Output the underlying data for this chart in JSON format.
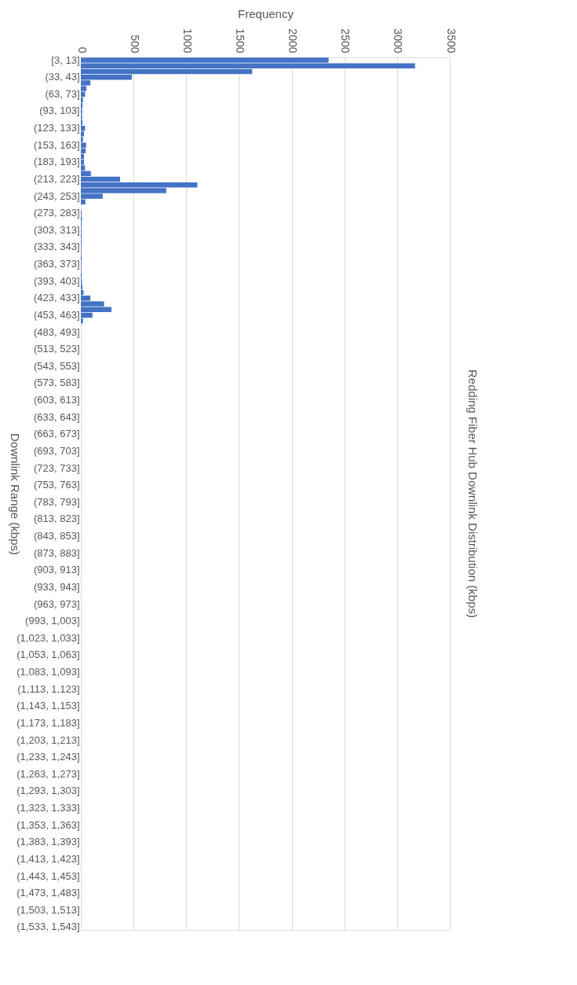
{
  "chart_data": {
    "type": "bar",
    "orientation": "horizontal",
    "title": "Redding Fiber Hub Downlink Distribution (kbps)",
    "xlabel": "Frequency",
    "ylabel": "Downlink Range (kbps)",
    "categories": [
      "[3, 13]",
      null,
      null,
      "(33, 43]",
      null,
      null,
      "(63, 73]",
      null,
      null,
      "(93, 103]",
      null,
      null,
      "(123, 133]",
      null,
      null,
      "(153, 163]",
      null,
      null,
      "(183, 193]",
      null,
      null,
      "(213, 223]",
      null,
      null,
      "(243, 253]",
      null,
      null,
      "(273, 283]",
      null,
      null,
      "(303, 313]",
      null,
      null,
      "(333, 343]",
      null,
      null,
      "(363, 373]",
      null,
      null,
      "(393, 403]",
      null,
      null,
      "(423, 433]",
      null,
      null,
      "(453, 463]",
      null,
      null,
      "(483, 493]",
      null,
      null,
      "(513, 523]",
      null,
      null,
      "(543, 553]",
      null,
      null,
      "(573, 583]",
      null,
      null,
      "(603, 613]",
      null,
      null,
      "(633, 643]",
      null,
      null,
      "(663, 673]",
      null,
      null,
      "(693, 703]",
      null,
      null,
      "(723, 733]",
      null,
      null,
      "(753, 763]",
      null,
      null,
      "(783, 793]",
      null,
      null,
      "(813, 823]",
      null,
      null,
      "(843, 853]",
      null,
      null,
      "(873, 883]",
      null,
      null,
      "(903, 913]",
      null,
      null,
      "(933, 943]",
      null,
      null,
      "(963, 973]",
      null,
      null,
      "(993, 1,003]",
      null,
      null,
      "(1,023, 1,033]",
      null,
      null,
      "(1,053, 1,063]",
      null,
      null,
      "(1,083, 1,093]",
      null,
      null,
      "(1,113, 1,123]",
      null,
      null,
      "(1,143, 1,153]",
      null,
      null,
      "(1,173, 1,183]",
      null,
      null,
      "(1,203, 1,213]",
      null,
      null,
      "(1,233, 1,243]",
      null,
      null,
      "(1,263, 1,273]",
      null,
      null,
      "(1,293, 1,303]",
      null,
      null,
      "(1,323, 1,333]",
      null,
      null,
      "(1,353, 1,363]",
      null,
      null,
      "(1,383, 1,393]",
      null,
      null,
      "(1,413, 1,423]",
      null,
      null,
      "(1,443, 1,453]",
      null,
      null,
      "(1,473, 1,483]",
      null,
      null,
      "(1,503, 1,513]",
      null,
      null,
      "(1,533, 1,543]"
    ],
    "values": [
      2350,
      3170,
      1625,
      483,
      90,
      53,
      40,
      20,
      15,
      12,
      12,
      15,
      40,
      30,
      20,
      50,
      45,
      30,
      30,
      40,
      95,
      372,
      1105,
      810,
      207,
      43,
      null,
      8,
      10,
      8,
      6,
      8,
      7,
      6,
      5,
      8,
      6,
      5,
      8,
      10,
      15,
      25,
      90,
      220,
      290,
      110,
      20,
      0,
      0,
      0,
      0,
      0,
      0,
      0,
      0,
      0,
      0,
      0,
      0,
      0,
      0,
      0,
      0,
      0,
      0,
      0,
      0,
      0,
      0,
      0,
      0,
      0,
      0,
      0,
      0,
      0,
      0,
      0,
      0,
      0,
      0,
      0,
      0,
      0,
      0,
      0,
      0,
      0,
      0,
      0,
      0,
      0,
      0,
      0,
      0,
      0,
      0,
      0,
      0,
      0,
      0,
      0,
      0,
      0,
      0,
      0,
      0,
      0,
      0,
      0,
      0,
      0,
      0,
      0,
      0,
      0,
      0,
      0,
      0,
      0,
      0,
      0,
      0,
      0,
      0,
      0,
      0,
      0,
      0,
      0,
      0,
      0,
      0,
      0,
      0,
      0,
      0,
      0,
      0,
      0,
      0,
      0,
      0,
      0,
      0,
      0,
      0,
      0,
      0,
      0,
      0,
      0,
      0,
      0
    ],
    "color": "#4472c4",
    "xlim": [
      0,
      3500
    ],
    "xticks": [
      0,
      500,
      1000,
      1500,
      2000,
      2500,
      3000,
      3500
    ],
    "grid": "x"
  }
}
